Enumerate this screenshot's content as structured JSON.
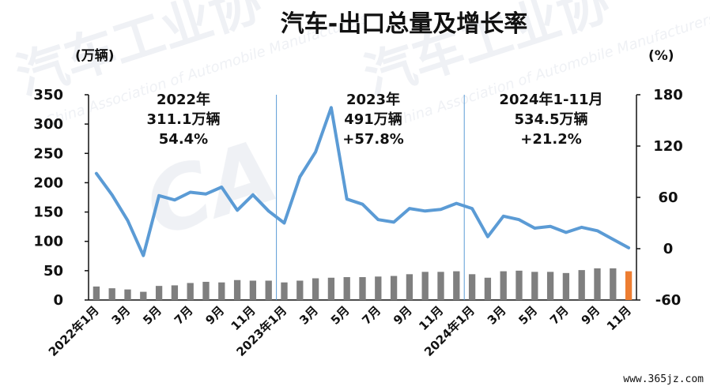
{
  "title": "汽车-出口总量及增长率",
  "watermark": {
    "text_cn": "汽车工业协",
    "text_en": "China Association of Automobile Manufacturers",
    "logo": "CA"
  },
  "left_unit": "(万辆)",
  "right_unit": "(%)",
  "site": "www.365jz.com",
  "annotations": [
    {
      "lines": [
        "2022年",
        "311.1万辆",
        "54.4%"
      ]
    },
    {
      "lines": [
        "2023年",
        "491万辆",
        "+57.8%"
      ]
    },
    {
      "lines": [
        "2024年1-11月",
        "534.5万辆",
        "+21.2%"
      ]
    }
  ],
  "colors": {
    "bar": "#7f7f7f",
    "bar_highlight": "#ed7d31",
    "line": "#5b9bd5",
    "axis": "#111111",
    "divider": "#5b9bd5"
  },
  "chart_data": {
    "type": "bar+line",
    "categories": [
      "2022年1月",
      "2月",
      "3月",
      "4月",
      "5月",
      "6月",
      "7月",
      "8月",
      "9月",
      "10月",
      "11月",
      "12月",
      "2023年1月",
      "2月",
      "3月",
      "4月",
      "5月",
      "6月",
      "7月",
      "8月",
      "9月",
      "10月",
      "11月",
      "12月",
      "2024年1月",
      "2月",
      "3月",
      "4月",
      "5月",
      "6月",
      "7月",
      "8月",
      "9月",
      "10月",
      "11月"
    ],
    "x_tick_labels": [
      "2022年1月",
      "",
      "3月",
      "",
      "5月",
      "",
      "7月",
      "",
      "9月",
      "",
      "11月",
      "",
      "2023年1月",
      "",
      "3月",
      "",
      "5月",
      "",
      "7月",
      "",
      "9月",
      "",
      "11月",
      "",
      "2024年1月",
      "",
      "3月",
      "",
      "5月",
      "",
      "7月",
      "",
      "9月",
      "",
      "11月"
    ],
    "series": [
      {
        "axis": "left",
        "values": [
          23,
          20,
          18,
          14,
          24,
          25,
          29,
          31,
          30,
          34,
          33,
          33,
          30,
          33,
          37,
          38,
          39,
          39,
          40,
          41,
          44,
          48,
          48,
          49,
          44,
          38,
          49,
          50,
          48,
          48,
          46,
          51,
          54,
          54,
          49
        ]
      },
      {
        "axis": "right",
        "values": [
          88,
          63,
          33,
          -8,
          62,
          57,
          66,
          64,
          72,
          45,
          63,
          44,
          30,
          84,
          113,
          165,
          58,
          52,
          34,
          31,
          47,
          44,
          46,
          53,
          47,
          14,
          38,
          34,
          24,
          26,
          19,
          25,
          21,
          11,
          1
        ]
      }
    ],
    "highlight_index": 34,
    "left_axis": {
      "ylim": [
        0,
        350
      ],
      "ticks": [
        0,
        50,
        100,
        150,
        200,
        250,
        300,
        350
      ]
    },
    "right_axis": {
      "ylim": [
        -60,
        180
      ],
      "ticks": [
        -60,
        0,
        60,
        120,
        180
      ]
    },
    "dividers_after_index": [
      11,
      23
    ],
    "grid": false
  }
}
